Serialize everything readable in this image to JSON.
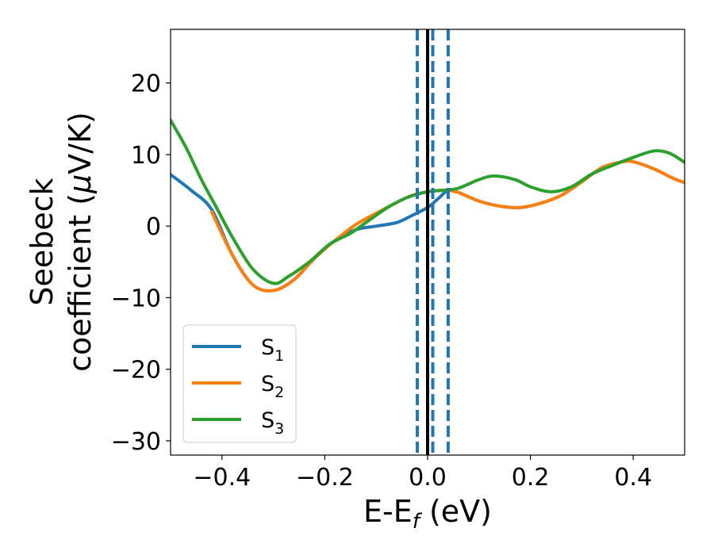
{
  "chart_data": {
    "type": "line",
    "xlabel": "E-E",
    "xlabel_sub": "f",
    "xlabel_unit": " (eV)",
    "ylabel_line1": "Seebeck",
    "ylabel_line2": "coefficient  (",
    "ylabel_mu": "μ",
    "ylabel_unit": "V/K)",
    "xlim": [
      -0.5,
      0.5
    ],
    "ylim": [
      -32,
      27.5
    ],
    "xticks": [
      -0.4,
      -0.2,
      0.0,
      0.2,
      0.4
    ],
    "xtick_labels": [
      "−0.4",
      "−0.2",
      "0.0",
      "0.2",
      "0.4"
    ],
    "yticks": [
      -30,
      -20,
      -10,
      0,
      10,
      20
    ],
    "ytick_labels": [
      "−30",
      "−20",
      "−10",
      "0",
      "10",
      "20"
    ],
    "grid": false,
    "legend_position": "lower-left",
    "vlines": [
      {
        "x": 0.0,
        "color": "#000000",
        "style": "solid"
      },
      {
        "x": -0.02,
        "color": "#1f77b4",
        "style": "dashed"
      },
      {
        "x": 0.01,
        "color": "#1f77b4",
        "style": "dashed"
      },
      {
        "x": 0.04,
        "color": "#1f77b4",
        "style": "dashed"
      }
    ],
    "series": [
      {
        "name": "S",
        "sub": "1",
        "color": "#1f77b4",
        "x": [
          -0.5,
          -0.46,
          -0.42,
          -0.38,
          -0.34,
          -0.3,
          -0.26,
          -0.22,
          -0.18,
          -0.14,
          -0.1,
          -0.06,
          -0.03,
          0.0,
          0.02,
          0.04,
          0.06,
          0.1,
          0.14,
          0.18,
          0.22,
          0.26,
          0.3,
          0.34,
          0.38,
          0.4,
          0.44,
          0.48,
          0.5
        ],
        "y": [
          7.2,
          5.0,
          2.3,
          -4.0,
          -8.2,
          -9.0,
          -7.5,
          -4.5,
          -2.0,
          -0.5,
          0.0,
          0.5,
          1.5,
          2.6,
          3.8,
          5.0,
          4.7,
          3.5,
          2.8,
          2.6,
          3.2,
          4.3,
          6.2,
          8.2,
          9.0,
          9.0,
          8.0,
          6.6,
          6.1
        ]
      },
      {
        "name": "S",
        "sub": "2",
        "color": "#ff7f0e",
        "x": [
          -0.42,
          -0.38,
          -0.34,
          -0.3,
          -0.26,
          -0.22,
          -0.18,
          -0.14,
          -0.1,
          -0.06,
          -0.03,
          0.0,
          0.02,
          0.04,
          0.06,
          0.1,
          0.14,
          0.18,
          0.22,
          0.26,
          0.3,
          0.34,
          0.38,
          0.4,
          0.44,
          0.48,
          0.5
        ],
        "y": [
          2.0,
          -4.0,
          -8.2,
          -9.0,
          -7.5,
          -4.5,
          -2.0,
          0.2,
          1.8,
          3.3,
          4.3,
          4.8,
          5.0,
          5.0,
          4.7,
          3.5,
          2.8,
          2.6,
          3.2,
          4.3,
          6.2,
          8.2,
          9.0,
          9.0,
          8.0,
          6.6,
          6.1
        ]
      },
      {
        "name": "S",
        "sub": "3",
        "color": "#2ca02c",
        "x": [
          -0.5,
          -0.47,
          -0.44,
          -0.41,
          -0.38,
          -0.34,
          -0.3,
          -0.27,
          -0.23,
          -0.19,
          -0.15,
          -0.12,
          -0.08,
          -0.04,
          0.0,
          0.03,
          0.06,
          0.1,
          0.13,
          0.17,
          0.2,
          0.24,
          0.28,
          0.32,
          0.36,
          0.4,
          0.44,
          0.47,
          0.5
        ],
        "y": [
          14.8,
          11.0,
          6.5,
          2.5,
          -1.5,
          -6.0,
          -8.0,
          -7.0,
          -5.0,
          -2.5,
          -1.0,
          0.5,
          2.5,
          4.0,
          4.8,
          5.0,
          5.3,
          6.5,
          7.0,
          6.5,
          5.5,
          4.8,
          5.5,
          7.3,
          8.5,
          9.6,
          10.5,
          10.2,
          8.9
        ]
      }
    ]
  }
}
